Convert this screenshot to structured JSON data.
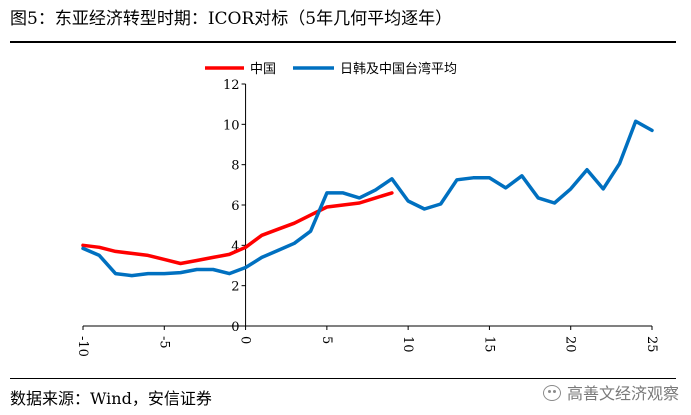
{
  "title": "图5：东亚经济转型时期：ICOR对标（5年几何平均逐年）",
  "source": "数据来源：Wind，安信证券",
  "watermark": "高善文经济观察",
  "chart_data": {
    "type": "line",
    "title": "",
    "xlabel": "",
    "ylabel": "",
    "xlim": [
      -10,
      25
    ],
    "ylim": [
      0,
      12
    ],
    "x_ticks": [
      -10,
      -5,
      0,
      5,
      10,
      15,
      20,
      25
    ],
    "y_ticks": [
      0,
      2,
      4,
      6,
      8,
      10,
      12
    ],
    "legend_position": "top",
    "grid": false,
    "series": [
      {
        "name": "中国",
        "color": "#ff0000",
        "x": [
          -10,
          -9,
          -8,
          -7,
          -6,
          -5,
          -4,
          -3,
          -2,
          -1,
          0,
          1,
          2,
          3,
          4,
          5,
          6,
          7,
          8,
          9
        ],
        "y": [
          4.0,
          3.9,
          3.7,
          3.6,
          3.5,
          3.3,
          3.1,
          3.25,
          3.4,
          3.55,
          3.9,
          4.5,
          4.8,
          5.1,
          5.5,
          5.9,
          6.0,
          6.1,
          6.35,
          6.6
        ]
      },
      {
        "name": "日韩及中国台湾平均",
        "color": "#0070c0",
        "x": [
          -10,
          -9,
          -8,
          -7,
          -6,
          -5,
          -4,
          -3,
          -2,
          -1,
          0,
          1,
          2,
          3,
          4,
          5,
          6,
          7,
          8,
          9,
          10,
          11,
          12,
          13,
          14,
          15,
          16,
          17,
          18,
          19,
          20,
          21,
          22,
          23,
          24,
          25
        ],
        "y": [
          3.85,
          3.5,
          2.6,
          2.5,
          2.6,
          2.6,
          2.65,
          2.8,
          2.8,
          2.6,
          2.9,
          3.4,
          3.75,
          4.1,
          4.7,
          6.6,
          6.6,
          6.35,
          6.75,
          7.3,
          6.2,
          5.8,
          6.05,
          7.25,
          7.35,
          7.35,
          6.85,
          7.45,
          6.35,
          6.1,
          6.8,
          7.75,
          6.8,
          8.05,
          10.15,
          9.7
        ]
      }
    ]
  }
}
